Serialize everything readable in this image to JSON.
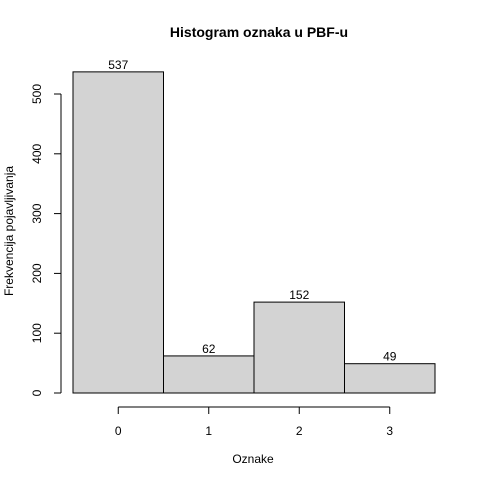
{
  "chart_data": {
    "type": "bar",
    "title": "Histogram oznaka u PBF-u",
    "xlabel": "Oznake",
    "ylabel": "Frekvencija pojavljivanja",
    "categories": [
      "0",
      "1",
      "2",
      "3"
    ],
    "values": [
      537,
      62,
      152,
      49
    ],
    "data_labels": [
      "537",
      "62",
      "152",
      "49"
    ],
    "y_ticks": [
      0,
      100,
      200,
      300,
      400,
      500
    ],
    "y_tick_labels": [
      "0",
      "100",
      "200",
      "300",
      "400",
      "500"
    ],
    "ylim": [
      0,
      537
    ],
    "grid": false,
    "bar_color": "#d3d3d3",
    "border_color": "#000000"
  }
}
